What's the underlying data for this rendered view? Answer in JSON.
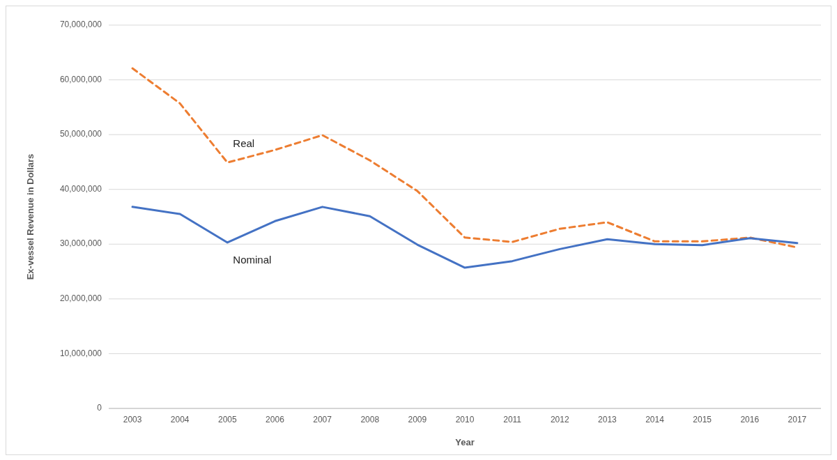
{
  "chart_data": {
    "type": "line",
    "xlabel": "Year",
    "ylabel": "Ex-vessel Revenue in Dollars",
    "categories": [
      "2003",
      "2004",
      "2005",
      "2006",
      "2007",
      "2008",
      "2009",
      "2010",
      "2011",
      "2012",
      "2013",
      "2014",
      "2015",
      "2016",
      "2017"
    ],
    "series": [
      {
        "name": "Real",
        "color": "#ed7d31",
        "line_style": "dashed",
        "values": [
          62100000,
          55700000,
          44900000,
          47200000,
          49900000,
          45300000,
          39700000,
          31200000,
          30400000,
          32800000,
          34000000,
          30500000,
          30500000,
          31200000,
          29400000
        ]
      },
      {
        "name": "Nominal",
        "color": "#4472c4",
        "line_style": "solid",
        "values": [
          36800000,
          35500000,
          30300000,
          34200000,
          36800000,
          35100000,
          29900000,
          25700000,
          26900000,
          29100000,
          30900000,
          30000000,
          29800000,
          31100000,
          30200000
        ]
      }
    ],
    "ylim": [
      0,
      70000000
    ],
    "yticks": [
      {
        "value": 0,
        "label": "0"
      },
      {
        "value": 10000000,
        "label": "10,000,000"
      },
      {
        "value": 20000000,
        "label": "20,000,000"
      },
      {
        "value": 30000000,
        "label": "30,000,000"
      },
      {
        "value": 40000000,
        "label": "40,000,000"
      },
      {
        "value": 50000000,
        "label": "50,000,000"
      },
      {
        "value": 60000000,
        "label": "60,000,000"
      },
      {
        "value": 70000000,
        "label": "70,000,000"
      }
    ],
    "grid": "y",
    "marker": "none"
  }
}
